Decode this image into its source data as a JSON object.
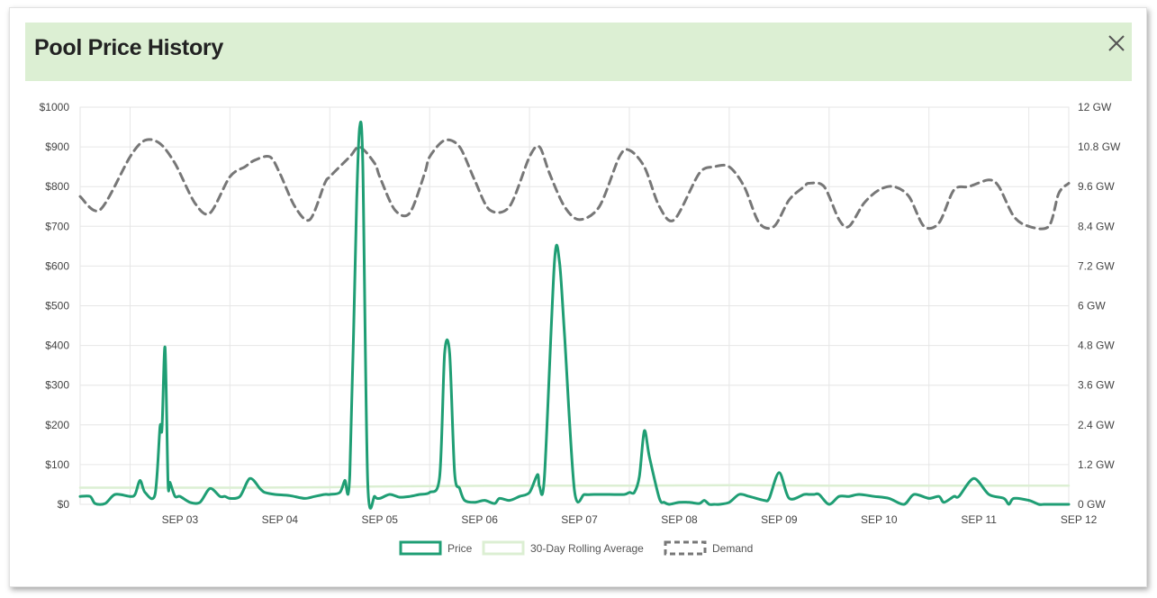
{
  "window": {
    "title": "Pool Price History"
  },
  "colors": {
    "header_bg": "#dcefd3",
    "price": "#1f9e74",
    "rolling": "#dcefd3",
    "demand": "#777777",
    "grid": "#e6e6e6"
  },
  "icons": {
    "close": "close-icon"
  },
  "chart_data": {
    "type": "line",
    "x_labels": [
      "SEP 03",
      "SEP 04",
      "SEP 05",
      "SEP 06",
      "SEP 07",
      "SEP 08",
      "SEP 09",
      "SEP 10",
      "SEP 11",
      "SEP 12"
    ],
    "x_range": [
      2.5,
      12.4
    ],
    "y_left": {
      "ticks": [
        "$0",
        "$100",
        "$200",
        "$300",
        "$400",
        "$500",
        "$600",
        "$700",
        "$800",
        "$900",
        "$1000"
      ],
      "range": [
        0,
        1000
      ]
    },
    "y_right": {
      "ticks": [
        "0 GW",
        "1.2 GW",
        "2.4 GW",
        "3.6 GW",
        "4.8 GW",
        "6 GW",
        "7.2 GW",
        "8.4 GW",
        "9.6 GW",
        "10.8 GW",
        "12 GW"
      ],
      "range": [
        0,
        12
      ]
    },
    "grid": true,
    "legend_position": "bottom",
    "series": [
      {
        "name": "Price",
        "axis": "left",
        "style": "solid",
        "x": [
          2.5,
          2.6,
          2.65,
          2.75,
          2.85,
          3.0,
          3.05,
          3.1,
          3.15,
          3.25,
          3.3,
          3.32,
          3.35,
          3.38,
          3.4,
          3.45,
          3.5,
          3.6,
          3.7,
          3.8,
          3.9,
          3.95,
          4.0,
          4.1,
          4.2,
          4.3,
          4.32,
          4.35,
          4.45,
          4.6,
          4.75,
          4.85,
          4.95,
          5.0,
          5.1,
          5.15,
          5.2,
          5.27,
          5.3,
          5.33,
          5.38,
          5.45,
          5.5,
          5.6,
          5.7,
          5.8,
          5.9,
          6.0,
          6.1,
          6.15,
          6.2,
          6.25,
          6.3,
          6.35,
          6.45,
          6.55,
          6.65,
          6.7,
          6.8,
          6.9,
          7.0,
          7.08,
          7.1,
          7.15,
          7.25,
          7.3,
          7.35,
          7.45,
          7.55,
          7.65,
          7.8,
          7.95,
          8.0,
          8.05,
          8.1,
          8.15,
          8.2,
          8.3,
          8.35,
          8.4,
          8.5,
          8.6,
          8.7,
          8.75,
          8.8,
          8.85,
          8.9,
          9.0,
          9.1,
          9.2,
          9.35,
          9.4,
          9.5,
          9.6,
          9.75,
          9.8,
          9.85,
          9.9,
          10.0,
          10.1,
          10.2,
          10.3,
          10.45,
          10.6,
          10.75,
          10.85,
          11.0,
          11.1,
          11.15,
          11.25,
          11.3,
          11.45,
          11.6,
          11.75,
          11.8,
          11.85,
          12.0,
          12.1,
          12.15,
          12.25,
          12.3,
          12.4
        ],
        "y": [
          20,
          20,
          2,
          2,
          25,
          20,
          25,
          60,
          30,
          25,
          195,
          190,
          395,
          55,
          55,
          20,
          20,
          5,
          5,
          40,
          20,
          20,
          15,
          20,
          65,
          40,
          35,
          30,
          25,
          22,
          15,
          20,
          25,
          25,
          30,
          60,
          75,
          770,
          950,
          860,
          55,
          20,
          15,
          25,
          18,
          20,
          25,
          30,
          70,
          380,
          380,
          80,
          40,
          10,
          5,
          10,
          2,
          15,
          10,
          20,
          30,
          75,
          45,
          70,
          610,
          610,
          430,
          35,
          25,
          25,
          25,
          25,
          30,
          30,
          70,
          185,
          120,
          15,
          5,
          0,
          5,
          5,
          2,
          10,
          0,
          0,
          0,
          5,
          25,
          20,
          10,
          15,
          80,
          15,
          25,
          25,
          25,
          25,
          0,
          20,
          20,
          25,
          20,
          15,
          0,
          25,
          15,
          20,
          5,
          20,
          20,
          65,
          25,
          15,
          0,
          15,
          10,
          0,
          0,
          0,
          0,
          0
        ]
      },
      {
        "name": "30-Day Rolling Average",
        "axis": "left",
        "style": "solid",
        "x": [
          2.5,
          4.0,
          5.0,
          5.4,
          6.0,
          7.0,
          8.0,
          9.0,
          10.0,
          11.0,
          12.4
        ],
        "y": [
          42,
          42,
          43,
          45,
          46,
          47,
          47,
          48,
          47,
          47,
          47
        ]
      },
      {
        "name": "Demand",
        "axis": "right",
        "style": "dashed",
        "x": [
          2.5,
          2.7,
          3.0,
          3.15,
          3.3,
          3.45,
          3.65,
          3.8,
          4.0,
          4.15,
          4.25,
          4.4,
          4.5,
          4.65,
          4.8,
          4.95,
          5.0,
          5.2,
          5.3,
          5.45,
          5.5,
          5.65,
          5.8,
          5.95,
          6.0,
          6.15,
          6.3,
          6.45,
          6.6,
          6.8,
          7.0,
          7.1,
          7.2,
          7.35,
          7.5,
          7.7,
          7.9,
          8.0,
          8.15,
          8.3,
          8.45,
          8.7,
          8.85,
          9.0,
          9.15,
          9.3,
          9.45,
          9.6,
          9.75,
          9.8,
          9.95,
          10.1,
          10.2,
          10.35,
          10.5,
          10.65,
          10.8,
          10.95,
          11.1,
          11.25,
          11.4,
          11.6,
          11.7,
          11.85,
          12.0,
          12.2,
          12.3,
          12.4
        ],
        "y": [
          9.3,
          8.9,
          10.5,
          11.0,
          10.9,
          10.3,
          9.1,
          8.8,
          9.9,
          10.2,
          10.4,
          10.5,
          10.0,
          9.0,
          8.6,
          9.7,
          9.9,
          10.5,
          10.8,
          10.3,
          9.9,
          8.9,
          8.8,
          10.0,
          10.5,
          11.0,
          10.8,
          9.8,
          8.9,
          9.0,
          10.5,
          10.8,
          10.0,
          9.0,
          8.6,
          9.0,
          10.5,
          10.7,
          10.2,
          9.0,
          8.6,
          10.0,
          10.2,
          10.2,
          9.6,
          8.5,
          8.4,
          9.2,
          9.6,
          9.7,
          9.6,
          8.6,
          8.4,
          9.1,
          9.5,
          9.6,
          9.3,
          8.4,
          8.5,
          9.5,
          9.6,
          9.8,
          9.6,
          8.7,
          8.4,
          8.4,
          9.4,
          9.7
        ]
      }
    ]
  }
}
